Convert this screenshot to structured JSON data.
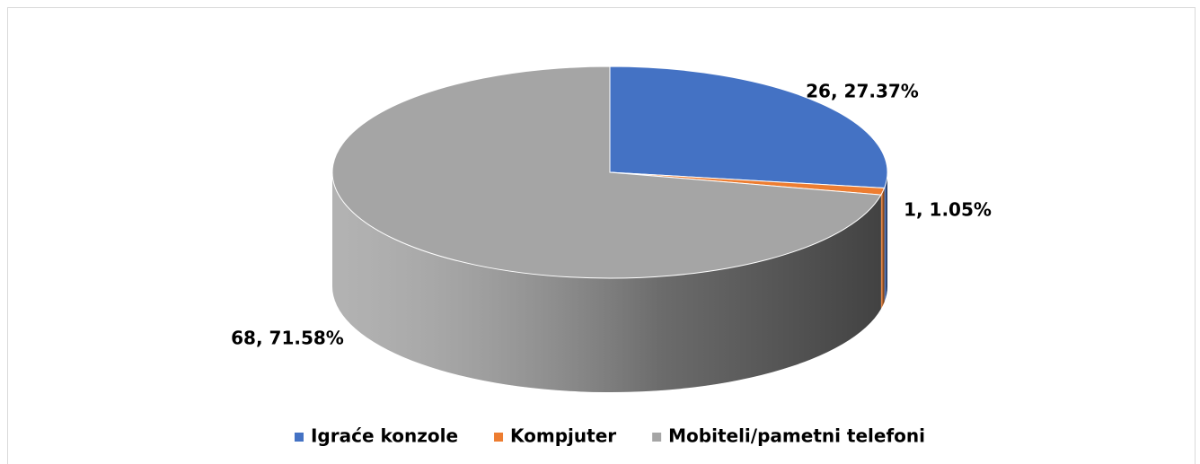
{
  "chart_data": {
    "type": "pie3d",
    "categories": [
      "Igraće konzole",
      "Kompjuter",
      "Mobiteli/pametni telefoni"
    ],
    "values": [
      26,
      1,
      68
    ],
    "value_labels": [
      "26, 27.37%",
      "1, 1.05%",
      "68, 71.58%"
    ],
    "colors": [
      "#4472c4",
      "#ed7d31",
      "#a5a5a5"
    ],
    "legend": "bottom"
  }
}
